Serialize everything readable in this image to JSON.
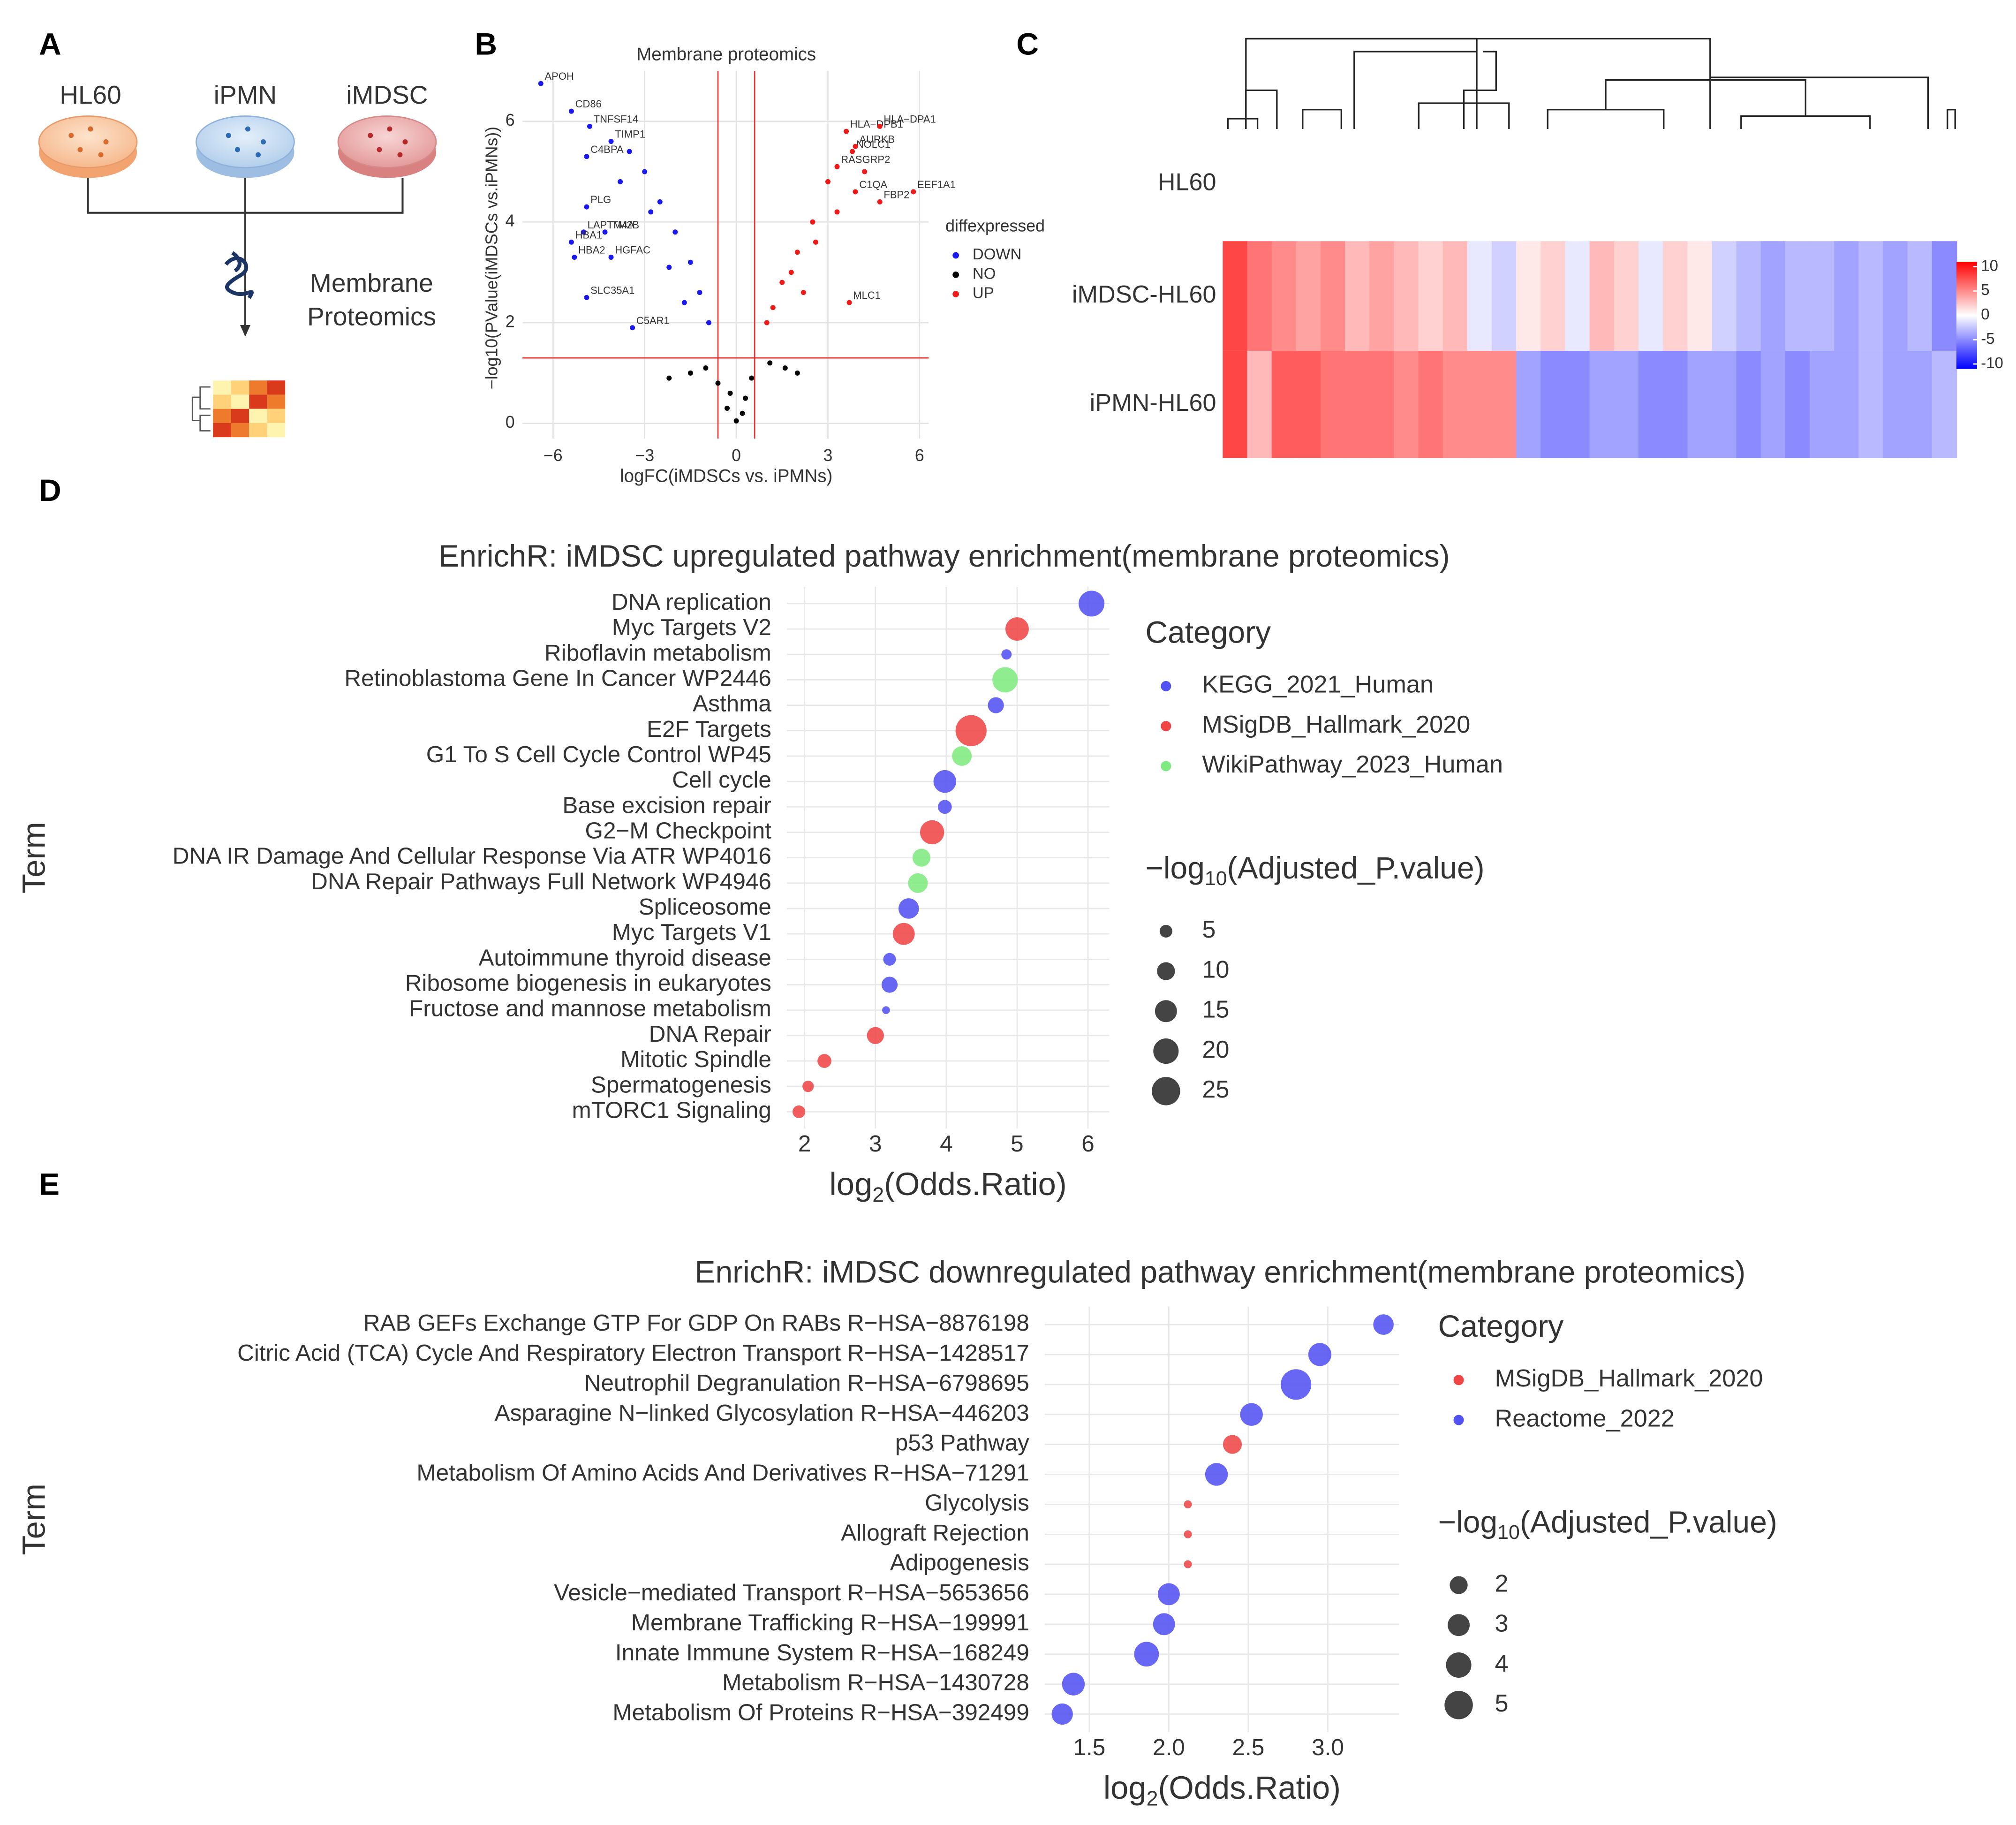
{
  "panel_labels": [
    "A",
    "B",
    "C",
    "D",
    "E"
  ],
  "panel_a": {
    "samples": [
      "HL60",
      "iPMN",
      "iMDSC"
    ],
    "label": [
      "Membrane",
      "Proteomics"
    ]
  },
  "chart_data": [
    {
      "type": "scatter",
      "title": "Membrane proteomics",
      "x_label": "logFC(iMDSCs vs. iPMNs)",
      "y_label": "−log10(PValue(iMDSCs vs.iPMNs))",
      "xlim": [
        -7,
        6.3
      ],
      "ylim": [
        -0.3,
        7
      ],
      "xticks": [
        {
          "value": -6,
          "label": "−6"
        },
        {
          "value": -3,
          "label": "−3"
        },
        0,
        3,
        6
      ],
      "yticks": [
        0,
        2,
        4,
        6
      ],
      "grid": true,
      "thresholds": {
        "x": [
          -0.6,
          0.6
        ],
        "y": 1.3
      },
      "legend_title": "diffexpressed",
      "series": [
        {
          "name": "DOWN",
          "color": "#1a1aee",
          "x": [
            -6.4,
            -5.4,
            -4.8,
            -4.1,
            -4.9,
            -4.9,
            -5.0,
            -4.3,
            -5.4,
            -5.3,
            -4.1,
            -4.9,
            -3.4,
            -3.5,
            -3.0,
            -2.5,
            -2.0,
            -1.5,
            -1.2,
            -0.9,
            -2.8,
            -2.2,
            -1.7,
            -3.8
          ],
          "values": [
            6.75,
            6.2,
            5.9,
            5.6,
            5.3,
            4.3,
            3.8,
            3.8,
            3.6,
            3.3,
            3.3,
            2.5,
            1.9,
            5.4,
            5.0,
            4.4,
            3.8,
            3.2,
            2.6,
            2.0,
            4.2,
            3.1,
            2.4,
            4.8
          ],
          "labels": [
            "APOH",
            "CD86",
            "TNFSF14",
            "TIMP1",
            "C4BPA",
            "PLG",
            "LAPTM4A",
            "ITM2B",
            "HBA1",
            "HBA2",
            "HGFAC",
            "SLC35A1",
            "C5AR1",
            null,
            null,
            null,
            null,
            null,
            null,
            null,
            null,
            null,
            null,
            null
          ]
        },
        {
          "name": "NO",
          "color": "#000000",
          "x": [
            -0.3,
            0.2,
            -0.6,
            0.5,
            -1.0,
            1.1,
            -1.5,
            1.6,
            0.0,
            -0.2,
            0.3,
            -2.2,
            2.0
          ],
          "values": [
            0.3,
            0.2,
            0.8,
            0.9,
            1.1,
            1.2,
            1.0,
            1.1,
            0.05,
            0.6,
            0.5,
            0.9,
            1.0
          ],
          "labels": [
            null,
            null,
            null,
            null,
            null,
            null,
            null,
            null,
            null,
            null,
            null,
            null,
            null
          ]
        },
        {
          "name": "UP",
          "color": "#ee1a1a",
          "x": [
            3.6,
            4.7,
            3.8,
            3.9,
            3.3,
            5.8,
            3.9,
            4.7,
            3.7,
            1.0,
            1.5,
            2.0,
            2.5,
            3.0,
            1.2,
            1.8,
            2.6,
            3.3,
            4.2,
            2.2
          ],
          "values": [
            5.8,
            5.9,
            5.4,
            5.5,
            5.1,
            4.6,
            4.6,
            4.4,
            2.4,
            2.0,
            2.8,
            3.4,
            4.0,
            4.8,
            2.3,
            3.0,
            3.6,
            4.2,
            5.0,
            2.6
          ],
          "labels": [
            "HLA−DPB1",
            "HLA−DPA1",
            "NOLC1",
            "AURKB",
            "RASGRP2",
            "EEF1A1",
            "C1QA",
            "FBP2",
            "MLC1",
            null,
            null,
            null,
            null,
            null,
            null,
            null,
            null,
            null,
            null,
            null
          ]
        }
      ]
    },
    {
      "type": "heatmap",
      "rows": [
        "HL60",
        "iMDSC-HL60",
        "iPMN-HL60"
      ],
      "values": [
        [
          0,
          0,
          0,
          0,
          0,
          0,
          0,
          0,
          0,
          0,
          0,
          0,
          0,
          0,
          0,
          0,
          0,
          0,
          0,
          0,
          0,
          0,
          0,
          0,
          0,
          0,
          0,
          0,
          0,
          0
        ],
        [
          8,
          6,
          5,
          4,
          5,
          3,
          4,
          3,
          2,
          3,
          -1,
          -2,
          1,
          2,
          -1,
          3,
          2,
          -1,
          2,
          1,
          -2,
          -3,
          -4,
          -3,
          -3,
          -4,
          -3,
          -4,
          -3,
          -5
        ],
        [
          8,
          3,
          7,
          7,
          6,
          6,
          6,
          5,
          6,
          5,
          5,
          5,
          -4,
          -5,
          -5,
          -4,
          -4,
          -5,
          -5,
          -4,
          -4,
          -5,
          -4,
          -5,
          -4,
          -4,
          -3,
          -4,
          -4,
          -3
        ]
      ],
      "zlim": [
        -11,
        11
      ],
      "zticks": [
        10,
        5,
        0,
        -5,
        -10
      ],
      "low_color": "#0000ff",
      "mid_color": "#ffffff",
      "high_color": "#ff0000"
    },
    {
      "type": "dot",
      "title": "EnrichR: iMDSC upregulated pathway enrichment(membrane proteomics)",
      "y_label": "Term",
      "x_label": [
        "log",
        "2",
        "(Odds.Ratio)"
      ],
      "xlim": [
        1.75,
        6.3
      ],
      "xticks": [
        2,
        3,
        4,
        5,
        6
      ],
      "grid": true,
      "categories": [
        "DNA replication",
        "Myc Targets V2",
        "Riboflavin metabolism",
        "Retinoblastoma Gene In Cancer WP2446",
        "Asthma",
        "E2F Targets",
        "G1 To S Cell Cycle Control WP45",
        "Cell cycle",
        "Base excision repair",
        "G2−M Checkpoint",
        "DNA IR Damage And Cellular Response Via ATR WP4016",
        "DNA Repair Pathways Full Network WP4946",
        "Spliceosome",
        "Myc Targets V1",
        "Autoimmune thyroid disease",
        "Ribosome biogenesis in eukaryotes",
        "Fructose and mannose metabolism",
        "DNA Repair",
        "Mitotic Spindle",
        "Spermatogenesis",
        "mTORC1 Signaling"
      ],
      "legend_title": "Category",
      "size_title": [
        "−log",
        "10",
        "(Adjusted_P.value)"
      ],
      "size_legend": [
        5,
        10,
        15,
        20,
        25
      ],
      "series": [
        {
          "name": "KEGG_2021_Human",
          "color": "#5252f2",
          "values": [
            6.05,
            null,
            4.85,
            null,
            4.7,
            null,
            null,
            3.98,
            3.98,
            null,
            null,
            null,
            3.47,
            null,
            3.2,
            3.2,
            3.15,
            null,
            null,
            null,
            null
          ],
          "sizes": [
            20.7,
            null,
            3.3,
            null,
            8,
            null,
            null,
            16,
            6,
            null,
            null,
            null,
            13,
            null,
            5,
            8,
            1.9,
            null,
            null,
            null,
            null
          ]
        },
        {
          "name": "MSigDB_Hallmark_2020",
          "color": "#ef4545",
          "values": [
            null,
            5.0,
            null,
            null,
            null,
            4.35,
            null,
            null,
            null,
            3.8,
            null,
            null,
            null,
            3.4,
            null,
            null,
            null,
            3.0,
            2.28,
            2.05,
            1.92
          ],
          "sizes": [
            null,
            17,
            null,
            null,
            null,
            30,
            null,
            null,
            null,
            18,
            null,
            null,
            null,
            15,
            null,
            null,
            null,
            9,
            6,
            4,
            5
          ]
        },
        {
          "name": "WikiPathway_2023_Human",
          "color": "#7fea7f",
          "values": [
            null,
            null,
            null,
            4.83,
            null,
            null,
            4.22,
            null,
            null,
            null,
            3.65,
            3.6,
            null,
            null,
            null,
            null,
            null,
            null,
            null,
            null,
            null
          ],
          "sizes": [
            null,
            null,
            null,
            20,
            null,
            null,
            12,
            null,
            null,
            null,
            10,
            12,
            null,
            null,
            null,
            null,
            null,
            null,
            null,
            null,
            null
          ]
        }
      ]
    },
    {
      "type": "dot",
      "title": "EnrichR: iMDSC downregulated pathway enrichment(membrane proteomics)",
      "y_label": "Term",
      "x_label": [
        "log",
        "2",
        "(Odds.Ratio)"
      ],
      "xlim": [
        1.22,
        3.45
      ],
      "xticks": [
        1.5,
        {
          "value": 2,
          "label": "2.0"
        },
        2.5,
        {
          "value": 3,
          "label": "3.0"
        }
      ],
      "grid": true,
      "categories": [
        "RAB GEFs Exchange GTP For GDP On RABs R−HSA−8876198",
        "Citric Acid (TCA) Cycle And Respiratory Electron Transport R−HSA−1428517",
        "Neutrophil Degranulation R−HSA−6798695",
        "Asparagine N−linked Glycosylation R−HSA−446203",
        "p53 Pathway",
        "Metabolism Of Amino Acids And Derivatives R−HSA−71291",
        "Glycolysis",
        "Allograft Rejection",
        "Adipogenesis",
        "Vesicle−mediated Transport R−HSA−5653656",
        "Membrane Trafficking R−HSA−199991",
        "Innate Immune System R−HSA−168249",
        "Metabolism R−HSA−1430728",
        "Metabolism Of Proteins R−HSA−392499"
      ],
      "legend_title": "Category",
      "size_title": [
        "−log",
        "10",
        "(Adjusted_P.value)"
      ],
      "size_legend": [
        2,
        3,
        4,
        5
      ],
      "series": [
        {
          "name": "MSigDB_Hallmark_2020",
          "color": "#ef4545",
          "values": [
            null,
            null,
            null,
            null,
            2.4,
            null,
            2.12,
            2.12,
            2.12,
            null,
            null,
            null,
            null,
            null
          ],
          "sizes": [
            null,
            null,
            null,
            null,
            2.2,
            null,
            0.4,
            0.4,
            0.4,
            null,
            null,
            null,
            null,
            null
          ]
        },
        {
          "name": "Reactome_2022",
          "color": "#5252f2",
          "values": [
            3.35,
            2.95,
            2.8,
            2.52,
            null,
            2.3,
            null,
            null,
            null,
            2.0,
            1.97,
            1.86,
            1.4,
            1.33
          ],
          "sizes": [
            2.6,
            3.3,
            5.8,
            3.2,
            null,
            3.2,
            null,
            null,
            null,
            3.0,
            3.0,
            3.8,
            3.2,
            2.8
          ]
        }
      ]
    }
  ]
}
